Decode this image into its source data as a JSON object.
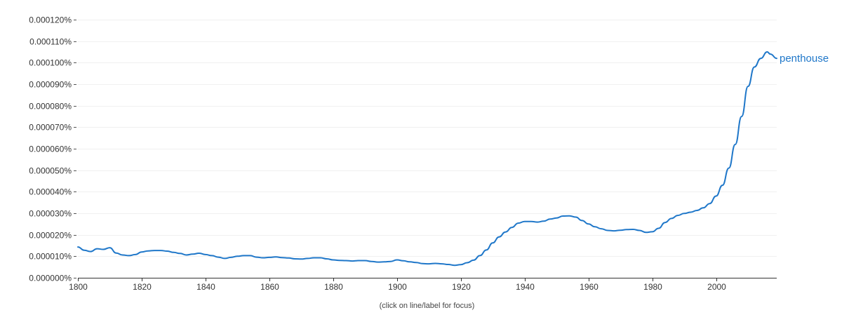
{
  "chart_data": {
    "type": "line",
    "xlim": [
      1800,
      2019
    ],
    "ylim": [
      0,
      0.00012
    ],
    "y_unit": "%",
    "y_ticks": [
      0,
      1e-05,
      2e-05,
      3e-05,
      4e-05,
      5e-05,
      6e-05,
      7e-05,
      8e-05,
      9e-05,
      0.0001,
      0.00011,
      0.00012
    ],
    "y_tick_labels": [
      "0.000000%",
      "0.000010%",
      "0.000020%",
      "0.000030%",
      "0.000040%",
      "0.000050%",
      "0.000060%",
      "0.000070%",
      "0.000080%",
      "0.000090%",
      "0.000100%",
      "0.000110%",
      "0.000120%"
    ],
    "x_ticks": [
      1800,
      1820,
      1840,
      1860,
      1880,
      1900,
      1920,
      1940,
      1960,
      1980,
      2000
    ],
    "x_tick_labels": [
      "1800",
      "1820",
      "1840",
      "1860",
      "1880",
      "1900",
      "1920",
      "1940",
      "1960",
      "1980",
      "2000"
    ],
    "grid": true,
    "series": [
      {
        "name": "penthouse",
        "color": "#1f77c9",
        "x": [
          1800,
          1802,
          1804,
          1806,
          1808,
          1810,
          1812,
          1814,
          1816,
          1818,
          1820,
          1822,
          1824,
          1826,
          1828,
          1830,
          1832,
          1834,
          1836,
          1838,
          1840,
          1842,
          1844,
          1846,
          1848,
          1850,
          1852,
          1854,
          1856,
          1858,
          1860,
          1862,
          1864,
          1866,
          1868,
          1870,
          1872,
          1874,
          1876,
          1878,
          1880,
          1882,
          1884,
          1886,
          1888,
          1890,
          1892,
          1894,
          1896,
          1898,
          1900,
          1902,
          1904,
          1906,
          1908,
          1910,
          1912,
          1914,
          1916,
          1918,
          1920,
          1922,
          1924,
          1926,
          1928,
          1930,
          1932,
          1934,
          1936,
          1938,
          1940,
          1942,
          1944,
          1946,
          1948,
          1950,
          1952,
          1954,
          1956,
          1958,
          1960,
          1962,
          1964,
          1966,
          1968,
          1970,
          1972,
          1974,
          1976,
          1978,
          1980,
          1982,
          1984,
          1986,
          1988,
          1990,
          1992,
          1994,
          1996,
          1998,
          2000,
          2002,
          2004,
          2006,
          2008,
          2010,
          2012,
          2014,
          2016,
          2017,
          2019
        ],
        "values": [
          1.43e-05,
          1.28e-05,
          1.22e-05,
          1.35e-05,
          1.32e-05,
          1.4e-05,
          1.15e-05,
          1.06e-05,
          1.03e-05,
          1.08e-05,
          1.2e-05,
          1.25e-05,
          1.27e-05,
          1.27e-05,
          1.24e-05,
          1.18e-05,
          1.13e-05,
          1.06e-05,
          1.1e-05,
          1.14e-05,
          1.08e-05,
          1.03e-05,
          9.6e-06,
          9e-06,
          9.5e-06,
          1e-05,
          1.03e-05,
          1.03e-05,
          9.6e-06,
          9.3e-06,
          9.5e-06,
          9.7e-06,
          9.4e-06,
          9.2e-06,
          8.8e-06,
          8.7e-06,
          9e-06,
          9.3e-06,
          9.3e-06,
          8.8e-06,
          8.3e-06,
          8.1e-06,
          8e-06,
          7.8e-06,
          8e-06,
          8e-06,
          7.6e-06,
          7.3e-06,
          7.4e-06,
          7.6e-06,
          8.3e-06,
          7.9e-06,
          7.4e-06,
          7.1e-06,
          6.6e-06,
          6.5e-06,
          6.7e-06,
          6.5e-06,
          6.2e-06,
          5.8e-06,
          6.1e-06,
          7e-06,
          8.2e-06,
          1.03e-05,
          1.29e-05,
          1.62e-05,
          1.9e-05,
          2.13e-05,
          2.34e-05,
          2.54e-05,
          2.62e-05,
          2.62e-05,
          2.59e-05,
          2.63e-05,
          2.73e-05,
          2.78e-05,
          2.87e-05,
          2.88e-05,
          2.82e-05,
          2.66e-05,
          2.5e-05,
          2.37e-05,
          2.28e-05,
          2.2e-05,
          2.18e-05,
          2.21e-05,
          2.24e-05,
          2.25e-05,
          2.2e-05,
          2.11e-05,
          2.14e-05,
          2.3e-05,
          2.57e-05,
          2.76e-05,
          2.9e-05,
          2.99e-05,
          3.05e-05,
          3.13e-05,
          3.25e-05,
          3.45e-05,
          3.8e-05,
          4.3e-05,
          5.1e-05,
          6.2e-05,
          7.5e-05,
          8.9e-05,
          9.8e-05,
          0.000102,
          0.000105,
          0.000104,
          0.000102
        ]
      }
    ]
  },
  "footer": {
    "note": "(click on line/label for focus)"
  }
}
